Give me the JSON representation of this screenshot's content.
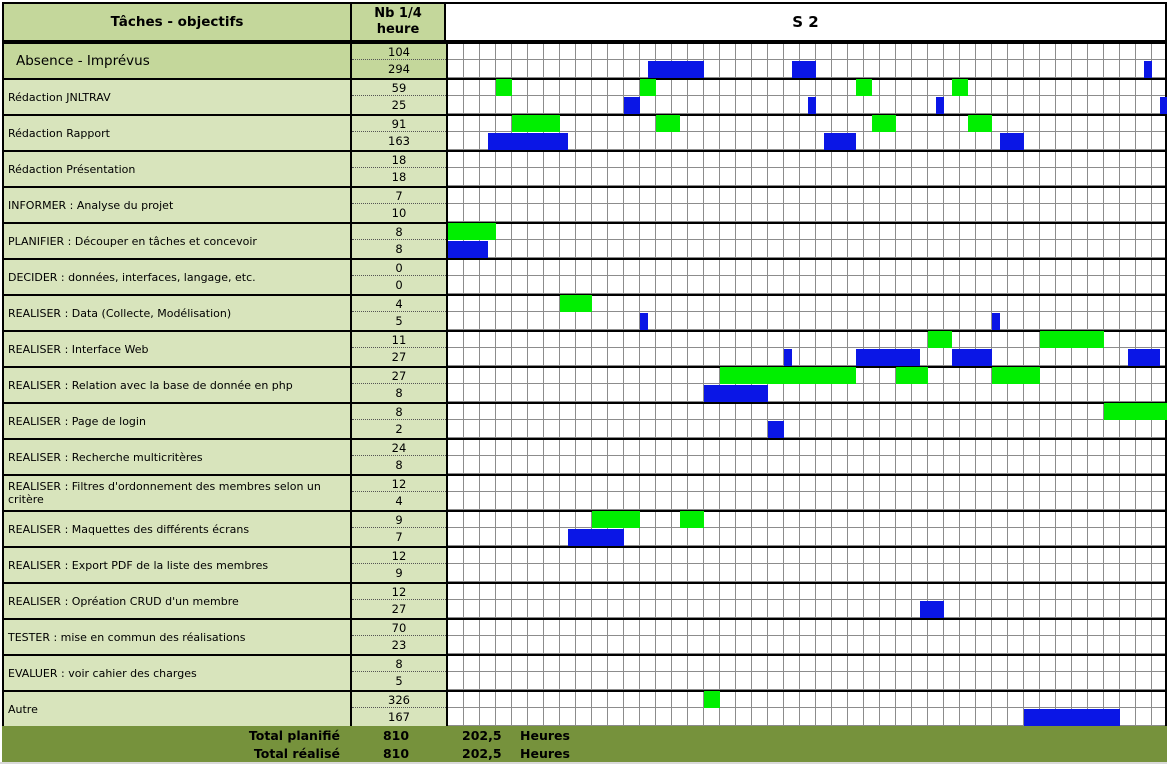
{
  "header": {
    "task_col": "Tâches - objectifs",
    "count_col": "Nb 1/4\nheure",
    "week": "S 2"
  },
  "colors": {
    "header_bg": "#c4d79b",
    "task_bg": "#d8e4bc",
    "planned_bar": "#00ef00",
    "actual_bar": "#0a16e6",
    "total_bg": "#76923c"
  },
  "tasks": [
    {
      "label": "Absence - Imprévus",
      "planned": "104",
      "actual": "294"
    },
    {
      "label": "Rédaction JNLTRAV",
      "planned": "59",
      "actual": "25"
    },
    {
      "label": "Rédaction Rapport",
      "planned": "91",
      "actual": "163"
    },
    {
      "label": "Rédaction Présentation",
      "planned": "18",
      "actual": "18"
    },
    {
      "label": "INFORMER : Analyse du projet",
      "planned": "7",
      "actual": "10"
    },
    {
      "label": "PLANIFIER : Découper en tâches et concevoir",
      "planned": "8",
      "actual": "8"
    },
    {
      "label": "DECIDER : données, interfaces, langage, etc.",
      "planned": "0",
      "actual": "0"
    },
    {
      "label": "REALISER : Data (Collecte, Modélisation)",
      "planned": "4",
      "actual": "5"
    },
    {
      "label": "REALISER : Interface Web",
      "planned": "11",
      "actual": "27"
    },
    {
      "label": "REALISER : Relation avec la base de donnée en php",
      "planned": "27",
      "actual": "8"
    },
    {
      "label": "REALISER : Page de login",
      "planned": "8",
      "actual": "2"
    },
    {
      "label": "REALISER : Recherche multicritères",
      "planned": "24",
      "actual": "8"
    },
    {
      "label": "REALISER : Filtres d'ordonnement des membres selon un critère",
      "planned": "12",
      "actual": "4"
    },
    {
      "label": "REALISER : Maquettes des différents écrans",
      "planned": "9",
      "actual": "7"
    },
    {
      "label": "REALISER : Export PDF de la liste des membres",
      "planned": "12",
      "actual": "9"
    },
    {
      "label": "REALISER : Opréation CRUD d'un membre",
      "planned": "12",
      "actual": "27"
    },
    {
      "label": "TESTER : mise en commun des réalisations",
      "planned": "70",
      "actual": "23"
    },
    {
      "label": "EVALUER : voir cahier des charges",
      "planned": "8",
      "actual": "5"
    },
    {
      "label": "Autre",
      "planned": "326",
      "actual": "167"
    }
  ],
  "timeline_slots": 45,
  "bars": [
    {
      "row": 0,
      "kind": "actual",
      "start": 12.5,
      "len": 3.5
    },
    {
      "row": 0,
      "kind": "actual",
      "start": 21.5,
      "len": 1.5
    },
    {
      "row": 0,
      "kind": "actual",
      "start": 43.5,
      "len": 0.5
    },
    {
      "row": 1,
      "kind": "planned",
      "start": 3,
      "len": 1
    },
    {
      "row": 1,
      "kind": "planned",
      "start": 12,
      "len": 1
    },
    {
      "row": 1,
      "kind": "planned",
      "start": 25.5,
      "len": 1
    },
    {
      "row": 1,
      "kind": "planned",
      "start": 31.5,
      "len": 1
    },
    {
      "row": 1,
      "kind": "actual",
      "start": 11,
      "len": 1
    },
    {
      "row": 1,
      "kind": "actual",
      "start": 22.5,
      "len": 0.5
    },
    {
      "row": 1,
      "kind": "actual",
      "start": 30.5,
      "len": 0.5
    },
    {
      "row": 1,
      "kind": "actual",
      "start": 44.5,
      "len": 0.5
    },
    {
      "row": 2,
      "kind": "planned",
      "start": 4,
      "len": 3
    },
    {
      "row": 2,
      "kind": "planned",
      "start": 13,
      "len": 1.5
    },
    {
      "row": 2,
      "kind": "planned",
      "start": 26.5,
      "len": 1.5
    },
    {
      "row": 2,
      "kind": "planned",
      "start": 32.5,
      "len": 1.5
    },
    {
      "row": 2,
      "kind": "actual",
      "start": 2.5,
      "len": 5
    },
    {
      "row": 2,
      "kind": "actual",
      "start": 23.5,
      "len": 2
    },
    {
      "row": 2,
      "kind": "actual",
      "start": 34.5,
      "len": 1.5
    },
    {
      "row": 5,
      "kind": "planned",
      "start": 0,
      "len": 3
    },
    {
      "row": 5,
      "kind": "actual",
      "start": 0,
      "len": 2.5
    },
    {
      "row": 7,
      "kind": "planned",
      "start": 7,
      "len": 2
    },
    {
      "row": 7,
      "kind": "actual",
      "start": 12,
      "len": 0.5
    },
    {
      "row": 7,
      "kind": "actual",
      "start": 34,
      "len": 0.5
    },
    {
      "row": 8,
      "kind": "planned",
      "start": 30,
      "len": 1.5
    },
    {
      "row": 8,
      "kind": "planned",
      "start": 37,
      "len": 4
    },
    {
      "row": 8,
      "kind": "actual",
      "start": 21,
      "len": 0.5
    },
    {
      "row": 8,
      "kind": "actual",
      "start": 25.5,
      "len": 4
    },
    {
      "row": 8,
      "kind": "actual",
      "start": 31.5,
      "len": 2.5
    },
    {
      "row": 8,
      "kind": "actual",
      "start": 42.5,
      "len": 2
    },
    {
      "row": 9,
      "kind": "planned",
      "start": 17,
      "len": 8.5
    },
    {
      "row": 9,
      "kind": "planned",
      "start": 28,
      "len": 2
    },
    {
      "row": 9,
      "kind": "planned",
      "start": 34,
      "len": 3
    },
    {
      "row": 9,
      "kind": "actual",
      "start": 16,
      "len": 4
    },
    {
      "row": 10,
      "kind": "planned",
      "start": 41,
      "len": 4
    },
    {
      "row": 10,
      "kind": "actual",
      "start": 20,
      "len": 1
    },
    {
      "row": 13,
      "kind": "planned",
      "start": 9,
      "len": 3
    },
    {
      "row": 13,
      "kind": "planned",
      "start": 14.5,
      "len": 1.5
    },
    {
      "row": 13,
      "kind": "actual",
      "start": 7.5,
      "len": 3.5
    },
    {
      "row": 15,
      "kind": "actual",
      "start": 29.5,
      "len": 1.5
    },
    {
      "row": 18,
      "kind": "planned",
      "start": 16,
      "len": 1
    },
    {
      "row": 18,
      "kind": "actual",
      "start": 36,
      "len": 6
    }
  ],
  "totals": {
    "planned_label": "Total planifié",
    "planned_value": "810",
    "planned_hours": "202,5",
    "actual_label": "Total réalisé",
    "actual_value": "810",
    "actual_hours": "202,5",
    "unit": "Heures"
  }
}
